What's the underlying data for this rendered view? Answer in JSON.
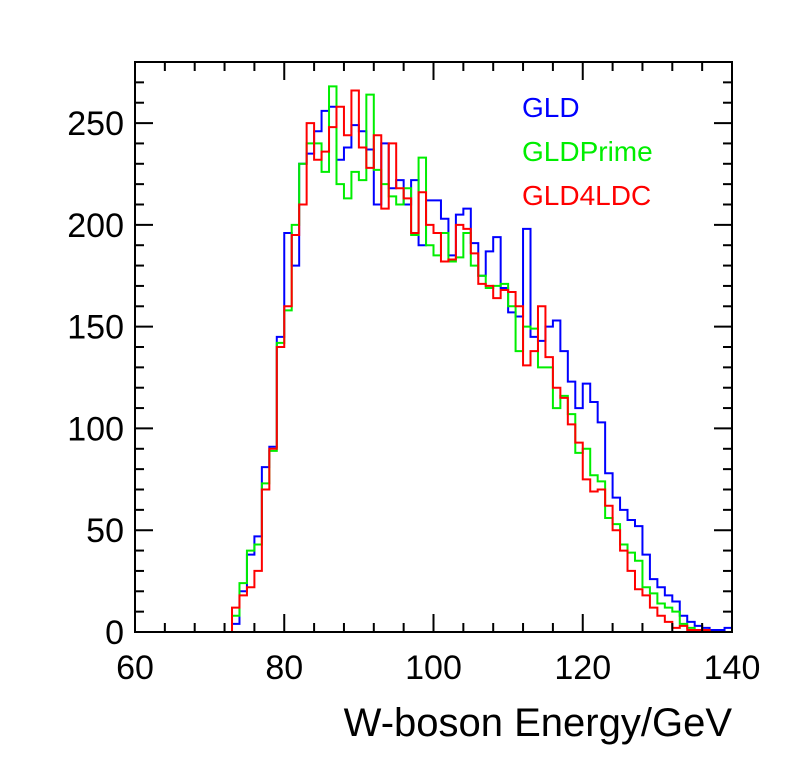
{
  "chart_data": {
    "type": "line",
    "style": "step-histogram",
    "title": "",
    "xlabel": "W-boson Energy/GeV",
    "ylabel": "",
    "xlim": [
      60,
      140
    ],
    "ylim": [
      0,
      280
    ],
    "grid": false,
    "legend_position": "top-right",
    "x_ticks": [
      60,
      80,
      100,
      120,
      140
    ],
    "y_ticks": [
      0,
      50,
      100,
      150,
      200,
      250
    ],
    "x_tick_labels": [
      "60",
      "80",
      "100",
      "120",
      "140"
    ],
    "y_tick_labels": [
      "0",
      "50",
      "100",
      "150",
      "200",
      "250"
    ],
    "bin_start": 73,
    "bin_width": 1,
    "series": [
      {
        "name": "GLD",
        "color": "#0000ff",
        "values": [
          4,
          20,
          38,
          47,
          81,
          91,
          145,
          196,
          180,
          230,
          235,
          246,
          256,
          258,
          232,
          238,
          249,
          246,
          237,
          210,
          240,
          218,
          222,
          210,
          222,
          190,
          212,
          212,
          203,
          185,
          205,
          208,
          191,
          175,
          187,
          194,
          169,
          157,
          155,
          198,
          145,
          143,
          150,
          153,
          138,
          123,
          110,
          122,
          113,
          103,
          78,
          66,
          60,
          55,
          52,
          38,
          26,
          22,
          18,
          15,
          8,
          5,
          3,
          2,
          1,
          1,
          2
        ]
      },
      {
        "name": "GLDPrime",
        "color": "#00ee00",
        "values": [
          8,
          24,
          40,
          43,
          73,
          89,
          142,
          158,
          200,
          230,
          240,
          240,
          226,
          268,
          220,
          213,
          226,
          222,
          264,
          227,
          220,
          214,
          210,
          218,
          195,
          233,
          190,
          185,
          196,
          182,
          184,
          196,
          180,
          175,
          169,
          170,
          171,
          160,
          138,
          150,
          149,
          130,
          130,
          110,
          116,
          107,
          88,
          90,
          77,
          74,
          56,
          53,
          43,
          39,
          35,
          22,
          19,
          14,
          12,
          10,
          4,
          2,
          1,
          1,
          0,
          0,
          0
        ]
      },
      {
        "name": "GLD4LDC",
        "color": "#ff0000",
        "values": [
          12,
          18,
          22,
          30,
          70,
          90,
          140,
          160,
          195,
          210,
          250,
          232,
          236,
          248,
          258,
          244,
          266,
          238,
          228,
          244,
          208,
          240,
          218,
          213,
          196,
          216,
          200,
          196,
          182,
          183,
          200,
          198,
          186,
          171,
          170,
          164,
          168,
          167,
          160,
          131,
          138,
          160,
          135,
          120,
          115,
          102,
          93,
          75,
          69,
          70,
          62,
          50,
          40,
          30,
          21,
          18,
          12,
          8,
          5,
          2,
          3,
          1,
          1,
          1,
          0,
          0,
          0
        ]
      }
    ]
  }
}
